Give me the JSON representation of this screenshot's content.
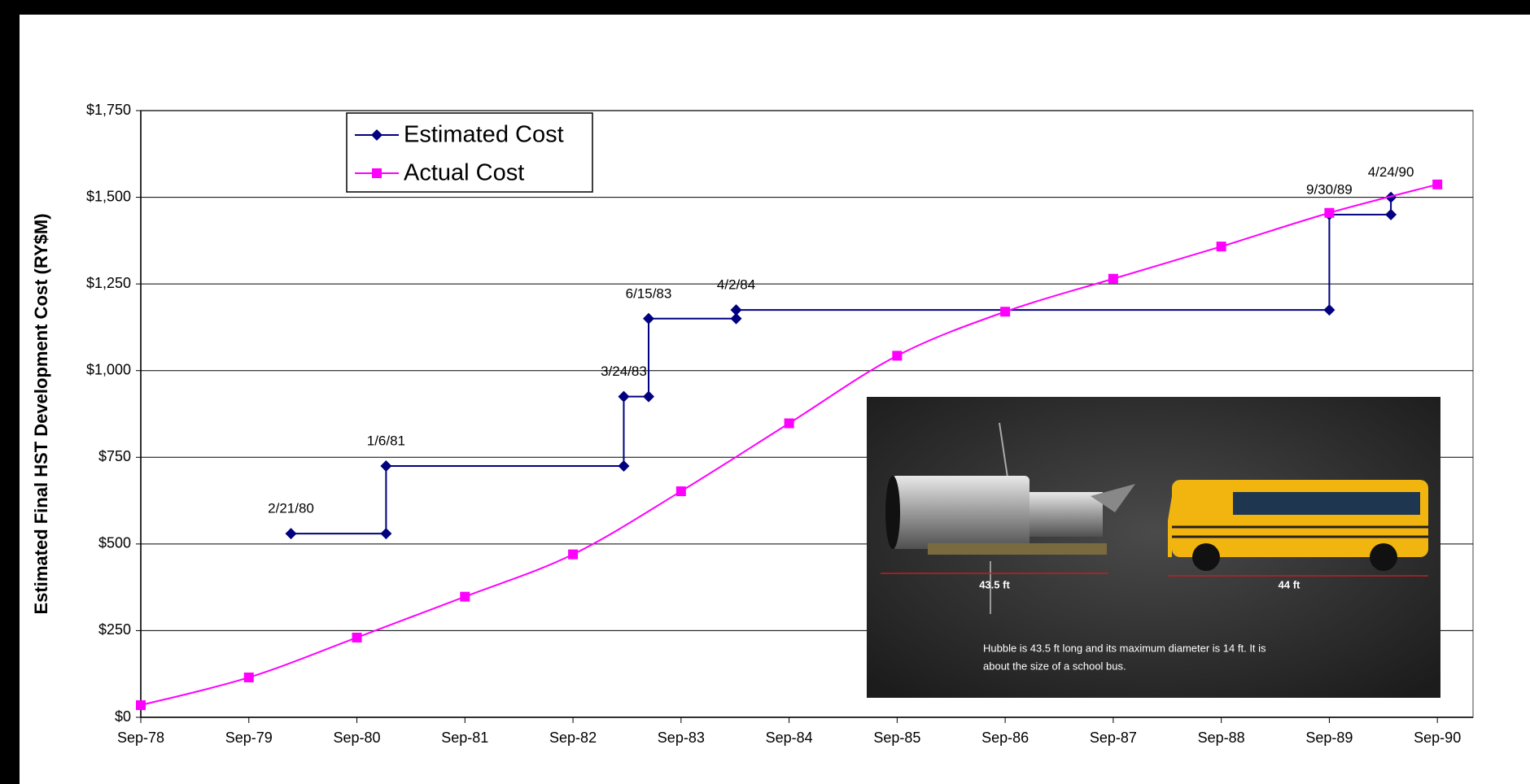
{
  "chart_data": {
    "type": "line",
    "y_label": "Estimated Final HST Development Cost (RY$M)",
    "xlim": [
      1978.67,
      1991.0
    ],
    "xticks": [
      {
        "value": 1978.67,
        "label": "Sep-78"
      },
      {
        "value": 1979.67,
        "label": "Sep-79"
      },
      {
        "value": 1980.67,
        "label": "Sep-80"
      },
      {
        "value": 1981.67,
        "label": "Sep-81"
      },
      {
        "value": 1982.67,
        "label": "Sep-82"
      },
      {
        "value": 1983.67,
        "label": "Sep-83"
      },
      {
        "value": 1984.67,
        "label": "Sep-84"
      },
      {
        "value": 1985.67,
        "label": "Sep-85"
      },
      {
        "value": 1986.67,
        "label": "Sep-86"
      },
      {
        "value": 1987.67,
        "label": "Sep-87"
      },
      {
        "value": 1988.67,
        "label": "Sep-88"
      },
      {
        "value": 1989.67,
        "label": "Sep-89"
      },
      {
        "value": 1990.67,
        "label": "Sep-90"
      }
    ],
    "ylim": [
      0,
      1750
    ],
    "yticks": [
      {
        "value": 0,
        "label": "$0"
      },
      {
        "value": 250,
        "label": "$250"
      },
      {
        "value": 500,
        "label": "$500"
      },
      {
        "value": 750,
        "label": "$750"
      },
      {
        "value": 1000,
        "label": "$1,000"
      },
      {
        "value": 1250,
        "label": "$1,250"
      },
      {
        "value": 1500,
        "label": "$1,500"
      },
      {
        "value": 1750,
        "label": "$1,750"
      }
    ],
    "grid": true,
    "legend": "upper left",
    "series": [
      {
        "name": "Estimated Cost",
        "color": "#000080",
        "marker": "diamond",
        "curve": "step",
        "x": [
          1980.06,
          1980.94,
          1980.94,
          1983.14,
          1983.14,
          1983.37,
          1983.37,
          1984.18,
          1984.18,
          1989.67,
          1989.67,
          1990.24,
          1990.24
        ],
        "values": [
          530,
          530,
          725,
          725,
          925,
          925,
          1150,
          1150,
          1175,
          1175,
          1450,
          1450,
          1500
        ],
        "point_labels": [
          "2/21/80",
          null,
          "1/6/81",
          null,
          "3/24/83",
          null,
          "6/15/83",
          null,
          "4/2/84",
          null,
          "9/30/89",
          null,
          "4/24/90"
        ]
      },
      {
        "name": "Actual Cost",
        "color": "#ff00ff",
        "marker": "square",
        "curve": "smooth",
        "x": [
          1978.67,
          1979.67,
          1980.67,
          1981.67,
          1982.67,
          1983.67,
          1984.67,
          1985.67,
          1986.67,
          1987.67,
          1988.67,
          1989.67,
          1990.67
        ],
        "values": [
          35,
          115,
          230,
          348,
          470,
          652,
          848,
          1043,
          1170,
          1265,
          1358,
          1455,
          1537
        ]
      }
    ]
  },
  "inset": {
    "hubble_length": "43.5 ft",
    "bus_length": "44 ft",
    "caption": [
      "Hubble is 43.5 ft long and its maximum diameter is 14 ft. It is",
      "about the size of a school bus."
    ]
  }
}
